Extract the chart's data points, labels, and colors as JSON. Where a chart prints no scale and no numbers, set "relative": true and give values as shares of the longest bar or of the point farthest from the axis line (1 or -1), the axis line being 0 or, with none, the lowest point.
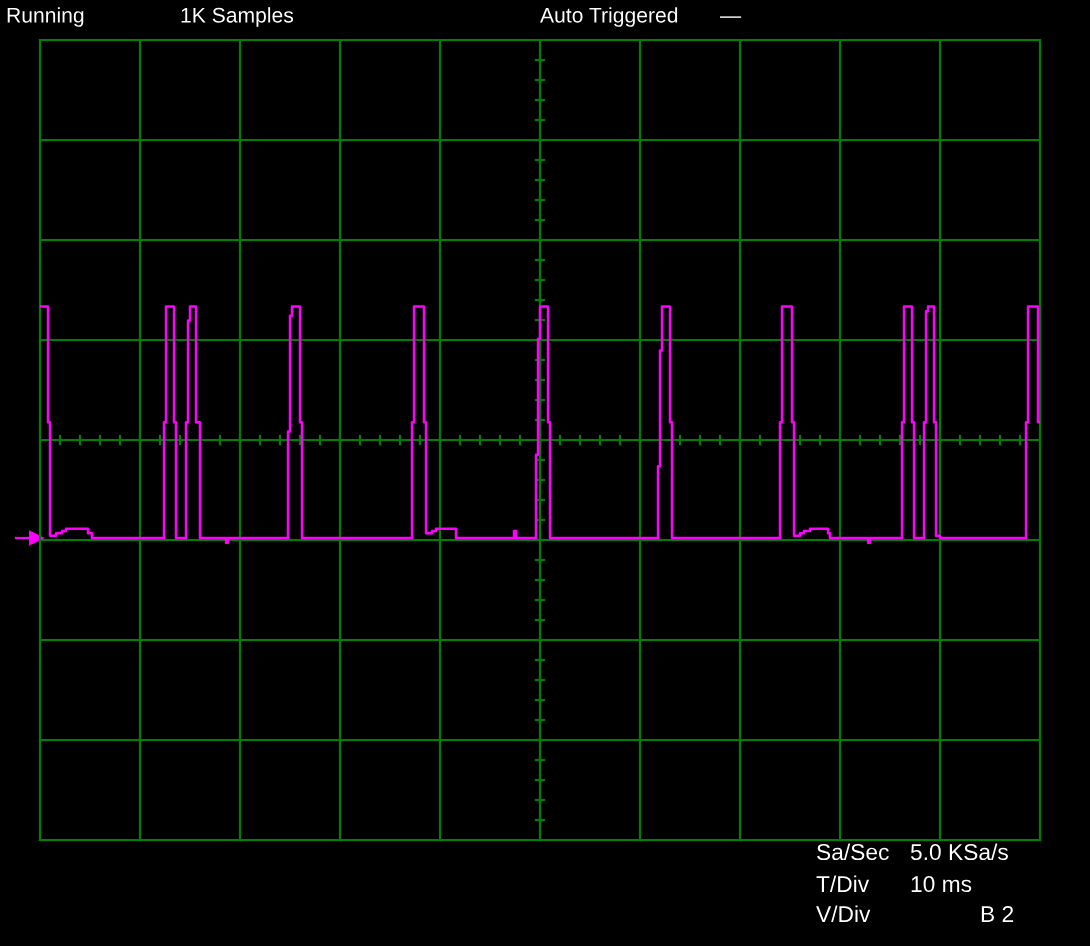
{
  "chart_data": {
    "type": "step",
    "relative": true,
    "color": "#ff00ff",
    "grid": true,
    "annotations": [
      "Running",
      "1K Samples",
      "Auto Triggered",
      "—",
      "Sa/Sec",
      "5.0 KSa/s",
      "T/Div",
      "10 ms",
      "V/Div",
      "B 2"
    ],
    "categories": [
      null,
      null,
      null,
      null,
      null,
      null,
      null,
      null,
      null,
      null,
      null,
      null,
      null,
      null,
      null,
      null,
      null,
      null,
      null,
      null,
      null,
      null,
      null,
      null,
      null,
      null,
      null,
      null,
      null,
      null,
      null,
      null,
      null,
      null,
      null,
      null,
      null,
      null,
      null,
      null,
      null,
      null,
      null,
      null,
      null,
      null,
      null,
      null,
      null,
      null,
      null,
      null,
      null,
      null,
      null,
      null,
      null,
      null,
      null,
      null,
      null,
      null,
      null,
      null,
      null,
      null,
      null,
      null,
      null,
      null,
      null,
      null,
      null,
      null,
      null,
      null,
      null,
      null,
      null,
      null,
      null,
      null,
      null,
      null,
      null,
      null,
      null,
      null,
      null,
      null,
      null,
      null,
      null,
      null,
      null,
      null,
      null,
      null,
      null,
      null,
      null,
      null,
      null,
      null,
      null,
      null,
      null,
      null,
      null,
      null,
      null,
      null,
      null,
      null,
      null,
      null,
      null,
      null,
      null,
      null,
      null,
      null,
      null,
      null,
      null,
      null,
      null,
      null,
      null,
      null,
      null,
      null,
      null,
      null,
      null,
      null,
      null,
      null,
      null,
      null,
      null,
      null,
      null,
      null,
      null,
      null,
      null,
      null,
      null,
      null,
      null,
      null,
      null,
      null,
      null,
      null,
      null,
      null,
      null,
      null,
      null,
      null,
      null,
      null,
      null,
      null,
      null,
      null,
      null,
      null,
      null,
      null,
      null,
      null,
      null,
      null,
      null,
      null,
      null,
      null,
      null,
      null,
      null,
      null,
      null,
      null,
      null,
      null,
      null,
      null,
      null,
      null,
      null,
      null,
      null,
      null,
      null,
      null,
      null,
      null,
      null,
      null,
      null,
      null,
      null,
      null,
      null,
      null,
      null,
      null,
      null,
      null,
      null,
      null,
      null,
      null,
      null,
      null,
      null,
      null,
      null,
      null,
      null,
      null,
      null,
      null,
      null,
      null,
      null,
      null,
      null,
      null,
      null,
      null,
      null,
      null,
      null,
      null,
      null,
      null,
      null,
      null,
      null,
      null,
      null,
      null,
      null,
      null,
      null,
      null,
      null,
      null,
      null,
      null,
      null,
      null,
      null,
      null,
      null,
      null,
      null,
      null,
      null,
      null,
      null,
      null,
      null,
      null,
      null,
      null,
      null,
      null,
      null,
      null,
      null,
      null,
      null,
      null,
      null,
      null,
      null,
      null,
      null,
      null,
      null,
      null,
      null,
      null,
      null,
      null,
      null,
      null,
      null,
      null,
      null,
      null,
      null,
      null,
      null,
      null,
      null,
      null,
      null,
      null,
      null,
      null,
      null,
      null,
      null,
      null,
      null,
      null,
      null,
      null,
      null,
      null,
      null,
      null,
      null,
      null,
      null,
      null,
      null,
      null,
      null,
      null,
      null,
      null,
      null,
      null,
      null,
      null,
      null,
      null,
      null,
      null,
      null,
      null,
      null,
      null,
      null,
      null,
      null,
      null,
      null,
      null,
      null,
      null,
      null,
      null,
      null,
      null,
      null,
      null,
      null,
      null,
      null,
      null,
      null,
      null,
      null,
      null,
      null,
      null,
      null,
      null,
      null,
      null,
      null,
      null,
      null,
      null,
      null,
      null,
      null,
      null,
      null,
      null,
      null,
      null,
      null,
      null,
      null,
      null,
      null,
      null,
      null,
      null,
      null,
      null,
      null,
      null,
      null,
      null,
      null,
      null,
      null,
      null,
      null,
      null,
      null,
      null,
      null,
      null,
      null,
      null,
      null,
      null,
      null,
      null,
      null,
      null,
      null,
      null,
      null,
      null,
      null,
      null,
      null,
      null,
      null,
      null,
      null,
      null,
      null,
      null,
      null,
      null,
      null,
      null,
      null,
      null,
      null,
      null,
      null,
      null,
      null,
      null,
      null,
      null,
      null,
      null,
      null,
      null,
      null,
      null,
      null,
      null,
      null,
      null,
      null,
      null,
      null,
      null,
      null,
      null,
      null,
      null,
      null,
      null,
      null,
      null,
      null,
      null,
      null,
      null,
      null,
      null,
      null,
      null,
      null,
      null,
      null,
      null,
      null,
      null,
      null,
      null,
      null,
      null,
      null,
      null,
      null,
      null,
      null,
      null,
      null,
      null,
      null,
      null,
      null,
      null,
      null,
      null,
      null,
      null,
      null,
      null,
      null,
      null
    ],
    "values": [
      1,
      1,
      1,
      1,
      0.5,
      0.01,
      0.01,
      0.01,
      0.02,
      0.02,
      0.02,
      0.03,
      0.03,
      0.04,
      0.04,
      0.04,
      0.04,
      0.04,
      0.04,
      0.04,
      0.04,
      0.04,
      0.04,
      0.04,
      0.02,
      0.02,
      0,
      0,
      0,
      0,
      0,
      0,
      0,
      0,
      0,
      0,
      0,
      0,
      0,
      0,
      0,
      0,
      0,
      0,
      0,
      0,
      0,
      0,
      0,
      0,
      0,
      0,
      0,
      0,
      0,
      0,
      0,
      0,
      0,
      0,
      0,
      0,
      0.5,
      1,
      1,
      1,
      1,
      0.5,
      0,
      0,
      0,
      0,
      0,
      0.5,
      0.94,
      1,
      1,
      1,
      0.5,
      0.5,
      0,
      0,
      0,
      0,
      0,
      0,
      0,
      0,
      0,
      0,
      0,
      0,
      0,
      -0.02,
      0,
      0,
      0,
      0,
      0,
      0,
      0,
      0,
      0,
      0,
      0,
      0,
      0,
      0,
      0,
      0,
      0,
      0,
      0,
      0,
      0,
      0,
      0,
      0,
      0,
      0,
      0,
      0,
      0,
      0,
      0.46,
      0.96,
      1,
      1,
      1,
      1,
      0.5,
      0,
      0,
      0,
      0,
      0,
      0,
      0,
      0,
      0,
      0,
      0,
      0,
      0,
      0,
      0,
      0,
      0,
      0,
      0,
      0,
      0,
      0,
      0,
      0,
      0,
      0,
      0,
      0,
      0,
      0,
      0,
      0,
      0,
      0,
      0,
      0,
      0,
      0,
      0,
      0,
      0,
      0,
      0,
      0,
      0,
      0,
      0,
      0,
      0,
      0,
      0,
      0,
      0,
      0,
      0,
      0.5,
      1,
      1,
      1,
      1,
      1,
      0.5,
      0.02,
      0.02,
      0.02,
      0.03,
      0.03,
      0.04,
      0.04,
      0.04,
      0.04,
      0.04,
      0.04,
      0.04,
      0.04,
      0.04,
      0.04,
      0,
      0,
      0,
      0,
      0,
      0,
      0,
      0,
      0,
      0,
      0,
      0,
      0,
      0,
      0,
      0,
      0,
      0,
      0,
      0,
      0,
      0,
      0,
      0,
      0,
      0,
      0,
      0,
      0,
      0.03,
      0,
      0,
      0,
      0,
      0,
      0,
      0,
      0,
      0,
      0,
      0.36,
      0.86,
      1,
      1,
      1,
      1,
      0.5,
      0,
      0,
      0,
      0,
      0,
      0,
      0,
      0,
      0,
      0,
      0,
      0,
      0,
      0,
      0,
      0,
      0,
      0,
      0,
      0,
      0,
      0,
      0,
      0,
      0,
      0,
      0,
      0,
      0,
      0,
      0,
      0,
      0,
      0,
      0,
      0,
      0,
      0,
      0,
      0,
      0,
      0,
      0,
      0,
      0,
      0,
      0,
      0,
      0,
      0,
      0,
      0,
      0,
      0,
      0.31,
      0.81,
      1,
      1,
      1,
      1,
      0.5,
      0,
      0,
      0,
      0,
      0,
      0,
      0,
      0,
      0,
      0,
      0,
      0,
      0,
      0,
      0,
      0,
      0,
      0,
      0,
      0,
      0,
      0,
      0,
      0,
      0,
      0,
      0,
      0,
      0,
      0,
      0,
      0,
      0,
      0,
      0,
      0,
      0,
      0,
      0,
      0,
      0,
      0,
      0,
      0,
      0,
      0,
      0,
      0,
      0,
      0,
      0,
      0,
      0,
      0,
      0.5,
      1,
      1,
      1,
      1,
      1,
      0.5,
      0.01,
      0.01,
      0.01,
      0.02,
      0.02,
      0.03,
      0.03,
      0.03,
      0.04,
      0.04,
      0.04,
      0.04,
      0.04,
      0.04,
      0.04,
      0.04,
      0.04,
      0.02,
      0,
      0,
      0,
      0,
      0,
      0,
      0,
      0,
      0,
      0,
      0,
      0,
      0,
      0,
      0,
      0,
      0,
      0,
      0,
      -0.02,
      0,
      0,
      0,
      0,
      0,
      0,
      0,
      0,
      0,
      0,
      0,
      0,
      0,
      0,
      0,
      0,
      0.5,
      1,
      1,
      1,
      1,
      0.5,
      0,
      0,
      0,
      0,
      0,
      0.5,
      0.98,
      1,
      1,
      1,
      0.5,
      0.01,
      0.01,
      0,
      0,
      0,
      0,
      0,
      0,
      0,
      0,
      0,
      0,
      0,
      0,
      0,
      0,
      0,
      0,
      0,
      0,
      0,
      0,
      0,
      0,
      0,
      0,
      0,
      0,
      0,
      0,
      0,
      0,
      0,
      0,
      0,
      0,
      0,
      0,
      0,
      0,
      0,
      0,
      0,
      0,
      0,
      0.5,
      1,
      1,
      1,
      1,
      1,
      0.5
    ]
  }
}
